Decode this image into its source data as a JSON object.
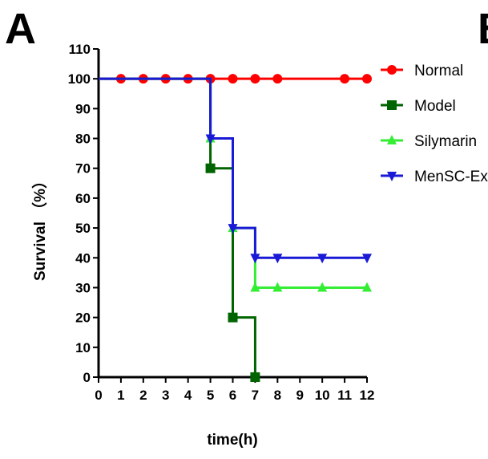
{
  "panel_labels": [
    "A",
    "B"
  ],
  "colors": {
    "Normal": "#ff0000",
    "Model": "#006400",
    "Silymarin": "#33ee33",
    "MenSC-Ex": "#1a1ad6"
  },
  "chart_data": {
    "type": "line",
    "step": true,
    "xlabel": "time(h)",
    "ylabel": "Survival （%）",
    "xlim": [
      0,
      12
    ],
    "ylim": [
      0,
      110
    ],
    "xticks": [
      0,
      1,
      2,
      3,
      4,
      5,
      6,
      7,
      8,
      9,
      10,
      11,
      12
    ],
    "yticks": [
      0,
      10,
      20,
      30,
      40,
      50,
      60,
      70,
      80,
      90,
      100,
      110
    ],
    "legend_position": "right",
    "series": [
      {
        "name": "Normal",
        "marker": "circle",
        "steps": [
          [
            0,
            100
          ],
          [
            12,
            100
          ]
        ],
        "markers": [
          [
            1,
            100
          ],
          [
            2,
            100
          ],
          [
            3,
            100
          ],
          [
            4,
            100
          ],
          [
            5,
            100
          ],
          [
            6,
            100
          ],
          [
            7,
            100
          ],
          [
            8,
            100
          ],
          [
            11,
            100
          ],
          [
            12,
            100
          ]
        ]
      },
      {
        "name": "Model",
        "marker": "square",
        "steps": [
          [
            0,
            100
          ],
          [
            5,
            70
          ],
          [
            6,
            20
          ],
          [
            7,
            0
          ]
        ],
        "markers": [
          [
            5,
            70
          ],
          [
            6,
            20
          ],
          [
            7,
            0
          ]
        ]
      },
      {
        "name": "Silymarin",
        "marker": "triangle-up",
        "steps": [
          [
            0,
            100
          ],
          [
            5,
            80
          ],
          [
            6,
            50
          ],
          [
            7,
            30
          ],
          [
            12,
            30
          ]
        ],
        "markers": [
          [
            5,
            80
          ],
          [
            6,
            50
          ],
          [
            7,
            30
          ],
          [
            8,
            30
          ],
          [
            10,
            30
          ],
          [
            12,
            30
          ]
        ]
      },
      {
        "name": "MenSC-Ex",
        "marker": "triangle-down",
        "steps": [
          [
            0,
            100
          ],
          [
            5,
            80
          ],
          [
            6,
            50
          ],
          [
            7,
            40
          ],
          [
            12,
            40
          ]
        ],
        "markers": [
          [
            5,
            80
          ],
          [
            6,
            50
          ],
          [
            7,
            40
          ],
          [
            8,
            40
          ],
          [
            10,
            40
          ],
          [
            12,
            40
          ]
        ]
      }
    ]
  }
}
